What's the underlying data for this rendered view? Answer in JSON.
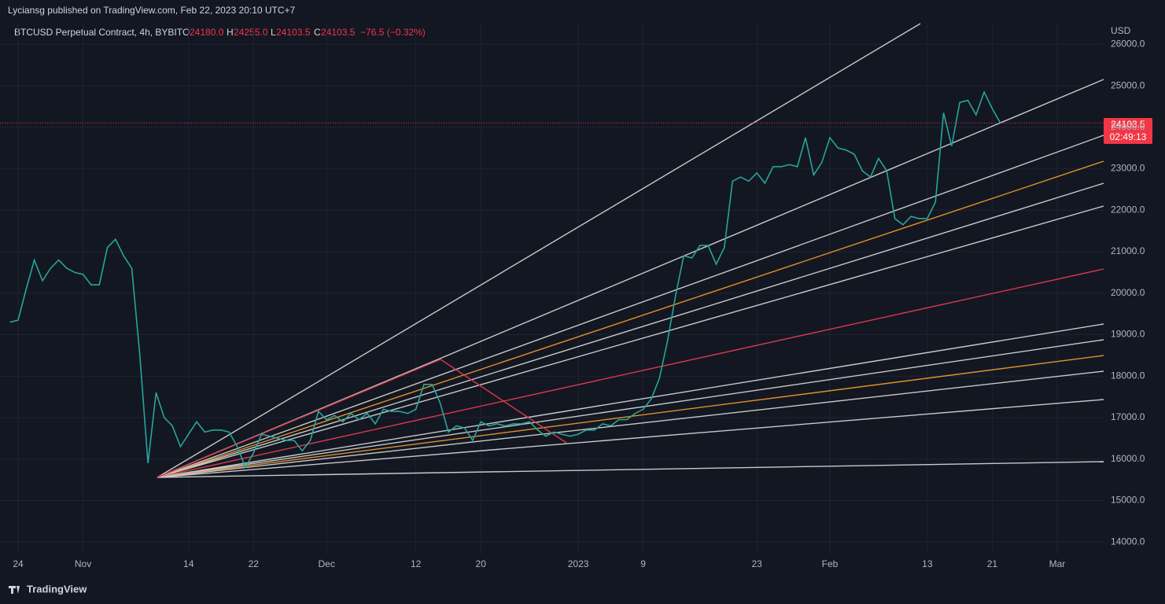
{
  "header": {
    "publisher": "Lyciansg published on TradingView.com, Feb 22, 2023 20:10 UTC+7",
    "footer": "TradingView"
  },
  "chart_data": {
    "type": "line",
    "title": "BTCUSD Perpetual Contract, 4h, BYBIT",
    "ohlc": {
      "open": {
        "label": "O",
        "value": "24180.0"
      },
      "high": {
        "label": "H",
        "value": "24255.0"
      },
      "low": {
        "label": "L",
        "value": "24103.5"
      },
      "close": {
        "label": "C",
        "value": "24103.5"
      },
      "change": "−76.5 (−0.32%)"
    },
    "y_unit": "USD",
    "last_price": {
      "value": 24103.5,
      "label": "24103.5"
    },
    "countdown": "02:49:13",
    "categories": [
      null,
      "24",
      null,
      null,
      null,
      null,
      null,
      null,
      null,
      "Nov",
      null,
      null,
      null,
      null,
      null,
      null,
      null,
      null,
      null,
      null,
      null,
      null,
      "14",
      null,
      null,
      null,
      null,
      null,
      null,
      null,
      "22",
      null,
      null,
      null,
      null,
      null,
      null,
      null,
      null,
      "Dec",
      null,
      null,
      null,
      null,
      null,
      null,
      null,
      null,
      null,
      null,
      "12",
      null,
      null,
      null,
      null,
      null,
      null,
      null,
      "20",
      null,
      null,
      null,
      null,
      null,
      null,
      null,
      null,
      null,
      null,
      null,
      "2023",
      null,
      null,
      null,
      null,
      null,
      null,
      null,
      "9",
      null,
      null,
      null,
      null,
      null,
      null,
      null,
      null,
      null,
      null,
      null,
      null,
      null,
      "23",
      null,
      null,
      null,
      null,
      null,
      null,
      null,
      null,
      "Feb",
      null,
      null,
      null,
      null,
      null,
      null,
      null,
      null,
      null,
      null,
      null,
      "13",
      null,
      null,
      null,
      null,
      null,
      null,
      null,
      "21",
      null,
      null,
      null,
      null,
      null,
      null,
      null,
      "Mar"
    ],
    "series": [
      {
        "name": "BTCUSD",
        "color": "#26a69a",
        "values": [
          19300,
          19350,
          20100,
          20800,
          20300,
          20600,
          20800,
          20600,
          20500,
          20450,
          20200,
          20200,
          21100,
          21300,
          20900,
          20600,
          18500,
          15900,
          17600,
          17000,
          16800,
          16300,
          16600,
          16900,
          16650,
          16700,
          16700,
          16650,
          16300,
          15800,
          16150,
          16600,
          16550,
          16500,
          16450,
          16450,
          16200,
          16450,
          17150,
          16950,
          17050,
          16900,
          17100,
          16950,
          17100,
          16850,
          17200,
          17150,
          17150,
          17100,
          17200,
          17800,
          17800,
          17350,
          16650,
          16800,
          16750,
          16450,
          16900,
          16800,
          16850,
          16800,
          16850,
          16850,
          16900,
          16700,
          16550,
          16650,
          16600,
          16550,
          16600,
          16700,
          16700,
          16850,
          16800,
          16950,
          16950,
          17100,
          17200,
          17450,
          17950,
          18850,
          19950,
          20900,
          20850,
          21150,
          21150,
          20700,
          21100,
          22700,
          22800,
          22700,
          22900,
          22650,
          23050,
          23050,
          23100,
          23050,
          23750,
          22850,
          23150,
          23750,
          23500,
          23450,
          23350,
          22950,
          22800,
          23250,
          22950,
          21800,
          21650,
          21850,
          21800,
          21800,
          22200,
          24350,
          23550,
          24600,
          24650,
          24300,
          24850,
          24450,
          24103.5,
          null,
          null,
          null,
          null,
          null,
          null,
          null
        ]
      }
    ],
    "ylim": [
      13700,
      26500
    ],
    "yticks": [
      {
        "value": 14000,
        "label": "14000.0"
      },
      {
        "value": 15000,
        "label": "15000.0"
      },
      {
        "value": 16000,
        "label": "16000.0"
      },
      {
        "value": 17000,
        "label": "17000.0"
      },
      {
        "value": 18000,
        "label": "18000.0"
      },
      {
        "value": 19000,
        "label": "19000.0"
      },
      {
        "value": 20000,
        "label": "20000.0"
      },
      {
        "value": 21000,
        "label": "21000.0"
      },
      {
        "value": 22000,
        "label": "22000.0"
      },
      {
        "value": 23000,
        "label": "23000.0"
      },
      {
        "value": 24000,
        "label": "24000.0"
      },
      {
        "value": 25000,
        "label": "25000.0"
      },
      {
        "value": 26000,
        "label": "26000.0"
      }
    ],
    "grid": true
  }
}
